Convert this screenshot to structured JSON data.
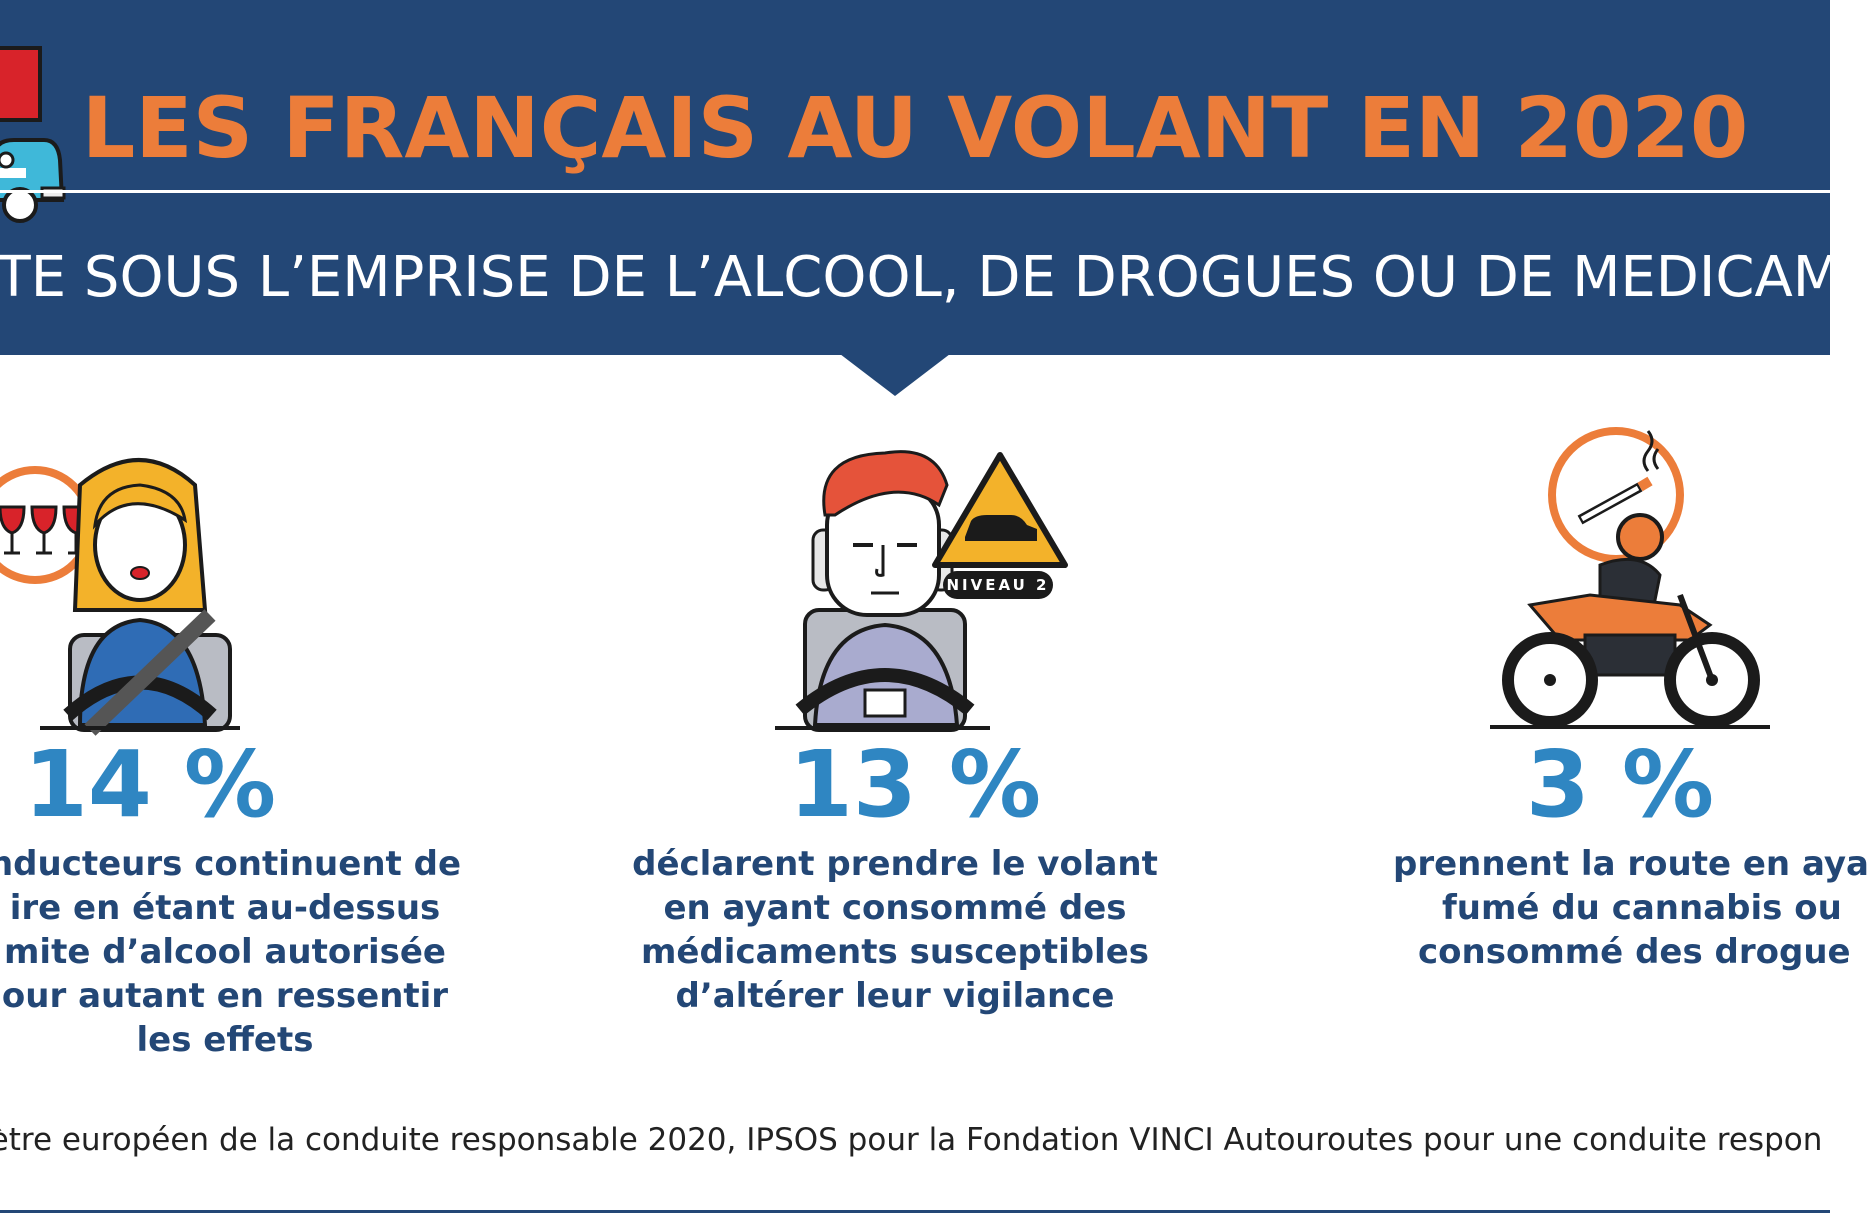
{
  "header": {
    "title": "LES FRANÇAIS AU VOLANT EN 2020",
    "subtitle": "ITE SOUS L’EMPRISE DE L’ALCOOL, DE DROGUES OU DE MEDICAM"
  },
  "stats": [
    {
      "icon": "woman-driver-wine-icon",
      "value": "14 %",
      "lines": [
        "nducteurs continuent de",
        "ire en étant au-dessus",
        "mite d’alcool autorisée",
        "our autant en ressentir",
        "les effets"
      ]
    },
    {
      "icon": "man-driver-warning-icon",
      "badge": "NIVEAU 2",
      "value": "13 %",
      "lines": [
        "déclarent prendre le volant",
        "en ayant consommé des",
        "médicaments susceptibles",
        "d’altérer leur vigilance"
      ]
    },
    {
      "icon": "motorcycle-cannabis-icon",
      "value": "3 %",
      "lines": [
        "prennent la route en aya",
        "fumé du cannabis ou",
        "consommé des drogue"
      ]
    }
  ],
  "source": "nètre européen de la conduite responsable 2020, IPSOS pour la Fondation VINCI Autouroutes pour une conduite respon",
  "colors": {
    "navy": "#234776",
    "orange": "#ec7d3a",
    "blue": "#2f86c2"
  }
}
